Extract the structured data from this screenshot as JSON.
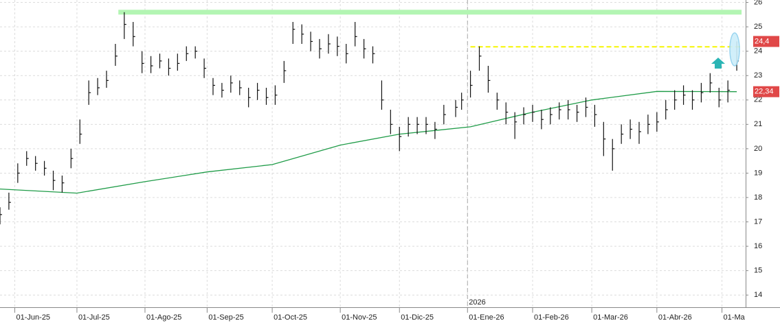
{
  "chart_data": {
    "type": "ohlc",
    "x": [
      "2025-05-26",
      "2025-05-29",
      "2025-06-03",
      "2025-06-06",
      "2025-06-11",
      "2025-06-16",
      "2025-06-19",
      "2025-06-24",
      "2025-06-27",
      "2025-07-02",
      "2025-07-07",
      "2025-07-10",
      "2025-07-15",
      "2025-07-18",
      "2025-07-23",
      "2025-07-28",
      "2025-07-31",
      "2025-08-05",
      "2025-08-08",
      "2025-08-13",
      "2025-08-18",
      "2025-08-21",
      "2025-08-26",
      "2025-08-29",
      "2025-09-03",
      "2025-09-08",
      "2025-09-11",
      "2025-09-16",
      "2025-09-19",
      "2025-09-24",
      "2025-09-29",
      "2025-10-02",
      "2025-10-07",
      "2025-10-10",
      "2025-10-15",
      "2025-10-20",
      "2025-10-23",
      "2025-10-28",
      "2025-10-31",
      "2025-11-05",
      "2025-11-10",
      "2025-11-13",
      "2025-11-18",
      "2025-11-21",
      "2025-11-26",
      "2025-12-01",
      "2025-12-04",
      "2025-12-09",
      "2025-12-12",
      "2025-12-17",
      "2025-12-22",
      "2025-12-26",
      "2025-12-30",
      "2026-01-02",
      "2026-01-07",
      "2026-01-12",
      "2026-01-15",
      "2026-01-20",
      "2026-01-23",
      "2026-01-28",
      "2026-02-02",
      "2026-02-05",
      "2026-02-10",
      "2026-02-13",
      "2026-02-18",
      "2026-02-23",
      "2026-02-26",
      "2026-03-03",
      "2026-03-06",
      "2026-03-11",
      "2026-03-16",
      "2026-03-19",
      "2026-03-24",
      "2026-03-27",
      "2026-04-01",
      "2026-04-06",
      "2026-04-09",
      "2026-04-14",
      "2026-04-17",
      "2026-04-22",
      "2026-04-27",
      "2026-04-30",
      "2026-05-05",
      "2026-05-08"
    ],
    "high": [
      17.6,
      18.2,
      19.4,
      19.9,
      19.7,
      19.5,
      19.1,
      18.9,
      20.0,
      21.2,
      22.8,
      22.9,
      23.2,
      24.3,
      25.6,
      25.2,
      24.0,
      23.8,
      23.9,
      23.7,
      23.9,
      24.2,
      24.2,
      23.7,
      22.9,
      22.7,
      23.0,
      22.8,
      22.5,
      22.7,
      22.5,
      22.6,
      23.6,
      25.2,
      25.1,
      24.8,
      24.5,
      24.7,
      24.6,
      24.3,
      25.2,
      24.5,
      24.2,
      22.8,
      21.6,
      20.9,
      21.3,
      21.3,
      21.3,
      21.1,
      21.8,
      22.0,
      22.3,
      23.2,
      24.2,
      23.4,
      22.3,
      21.9,
      21.5,
      21.7,
      21.8,
      21.6,
      21.7,
      21.9,
      22.0,
      21.8,
      22.1,
      21.8,
      21.1,
      20.4,
      21.0,
      21.2,
      21.1,
      21.4,
      21.5,
      22.0,
      22.4,
      22.6,
      22.4,
      22.7,
      23.1,
      22.5,
      22.8,
      24.4
    ],
    "low": [
      16.9,
      17.5,
      18.6,
      19.3,
      19.1,
      18.9,
      18.3,
      18.2,
      19.2,
      20.2,
      21.8,
      22.2,
      22.5,
      23.4,
      24.5,
      24.2,
      23.1,
      23.1,
      23.3,
      23.0,
      23.2,
      23.6,
      23.7,
      22.9,
      22.2,
      22.1,
      22.3,
      22.2,
      21.7,
      22.0,
      21.8,
      21.8,
      22.7,
      24.3,
      24.3,
      24.0,
      23.7,
      23.9,
      23.8,
      23.5,
      24.2,
      23.7,
      23.5,
      21.6,
      20.6,
      19.9,
      20.5,
      20.6,
      20.6,
      20.4,
      21.0,
      21.3,
      21.6,
      22.1,
      23.2,
      22.3,
      21.6,
      21.0,
      20.4,
      21.0,
      21.1,
      20.8,
      21.0,
      21.2,
      21.2,
      21.1,
      21.3,
      20.9,
      19.7,
      19.1,
      20.2,
      20.4,
      20.2,
      20.6,
      20.7,
      21.2,
      21.6,
      21.8,
      21.6,
      21.9,
      22.3,
      21.7,
      21.9,
      23.2
    ],
    "close": [
      17.3,
      17.8,
      19.0,
      19.6,
      19.4,
      19.2,
      18.7,
      18.6,
      19.6,
      20.6,
      22.3,
      22.5,
      22.8,
      23.8,
      25.1,
      24.6,
      23.5,
      23.4,
      23.6,
      23.3,
      23.5,
      23.9,
      24.0,
      23.3,
      22.6,
      22.4,
      22.7,
      22.5,
      22.1,
      22.4,
      22.1,
      22.2,
      23.2,
      24.9,
      24.7,
      24.4,
      24.1,
      24.3,
      24.2,
      23.9,
      24.6,
      24.1,
      23.9,
      22.0,
      21.0,
      20.5,
      21.0,
      21.0,
      21.0,
      20.8,
      21.4,
      21.7,
      22.0,
      22.6,
      23.8,
      22.8,
      22.0,
      21.5,
      21.1,
      21.4,
      21.5,
      21.2,
      21.4,
      21.6,
      21.6,
      21.5,
      21.7,
      21.4,
      20.4,
      20.0,
      20.6,
      20.8,
      20.7,
      21.0,
      21.1,
      21.6,
      22.0,
      22.2,
      22.0,
      22.3,
      22.7,
      22.0,
      22.4,
      23.6
    ],
    "bar_color": "#111111",
    "moving_average": {
      "color": "#1e9b47",
      "x": [
        "2025-05-26",
        "2025-07-01",
        "2025-08-01",
        "2025-09-01",
        "2025-10-01",
        "2025-11-03",
        "2025-12-01",
        "2026-01-02",
        "2026-02-02",
        "2026-03-02",
        "2026-04-01",
        "2026-05-08"
      ],
      "values": [
        18.35,
        18.18,
        18.65,
        19.05,
        19.35,
        20.15,
        20.6,
        20.9,
        21.5,
        22.0,
        22.35,
        22.34
      ]
    },
    "levels": [
      {
        "value": 25.6,
        "from": "2025-07-21",
        "to": "2026-05-08",
        "color": "#b3f5b3",
        "style": "band"
      },
      {
        "value": 24.18,
        "from": "2026-01-02",
        "to": "2026-05-08",
        "color": "#f5f500",
        "style": "dashed"
      }
    ],
    "price_labels": [
      {
        "value": 24.4,
        "label": "24,4"
      },
      {
        "value": 22.34,
        "label": "22,34"
      }
    ],
    "year_marker": {
      "value": "2026-01-01",
      "label": "2026"
    },
    "xlim": [
      "2025-05-26",
      "2026-05-13"
    ],
    "xticks": [
      {
        "value": "2025-06-01",
        "label": "01-Jun-25"
      },
      {
        "value": "2025-07-01",
        "label": "01-Jul-25"
      },
      {
        "value": "2025-08-01",
        "label": "01-Ago-25"
      },
      {
        "value": "2025-09-01",
        "label": "01-Sep-25"
      },
      {
        "value": "2025-10-01",
        "label": "01-Oct-25"
      },
      {
        "value": "2025-11-01",
        "label": "01-Nov-25"
      },
      {
        "value": "2025-12-01",
        "label": "01-Dic-25"
      },
      {
        "value": "2026-01-01",
        "label": "01-Ene-26"
      },
      {
        "value": "2026-02-01",
        "label": "01-Feb-26"
      },
      {
        "value": "2026-03-01",
        "label": "01-Mar-26"
      },
      {
        "value": "2026-04-01",
        "label": "01-Abr-26"
      },
      {
        "value": "2026-05-01",
        "label": "01-Ma"
      }
    ],
    "ylim": [
      13.5,
      26.1
    ],
    "yticks": [
      14,
      15,
      16,
      17,
      18,
      19,
      20,
      21,
      22,
      23,
      24,
      25,
      26
    ],
    "grid": true
  }
}
